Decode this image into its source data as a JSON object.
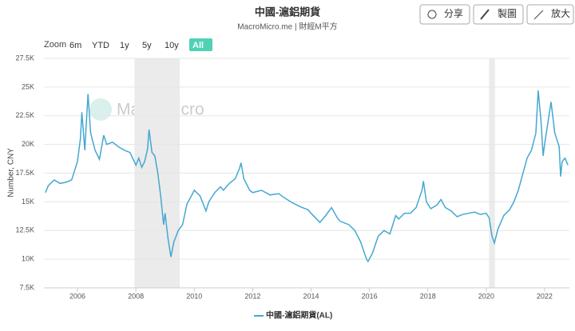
{
  "title": "中國-滬鋁期貨",
  "subtitle": "MacroMicro.me | 財經M平方",
  "buttons": [
    "分享",
    "製圖",
    "放大"
  ],
  "range_selector": {
    "label": "Zoom",
    "options": [
      "6m",
      "YTD",
      "1y",
      "5y",
      "10y",
      "All"
    ]
  },
  "watermark": "MacroMicro",
  "chart_data": {
    "type": "line",
    "ylabel": "Number, CNY",
    "xlim": [
      2004.85,
      2022.85
    ],
    "xticks": [
      2006,
      2008,
      2010,
      2012,
      2014,
      2016,
      2018,
      2020,
      2022
    ],
    "ylim": [
      7500,
      27500
    ],
    "yticks": [
      {
        "value": 7500,
        "label": "7.5K"
      },
      {
        "value": 10000,
        "label": "10K"
      },
      {
        "value": 12500,
        "label": "12.5K"
      },
      {
        "value": 15000,
        "label": "15K"
      },
      {
        "value": 17500,
        "label": "17.5K"
      },
      {
        "value": 20000,
        "label": "20K"
      },
      {
        "value": 22500,
        "label": "22.5K"
      },
      {
        "value": 25000,
        "label": "25K"
      },
      {
        "value": 27500,
        "label": "27.5K"
      }
    ],
    "grid": true,
    "plot_bands": [
      [
        2007.95,
        2009.5
      ],
      [
        2020.1,
        2020.3
      ]
    ],
    "x": [
      2004.9,
      2005.0,
      2005.2,
      2005.4,
      2005.6,
      2005.8,
      2006.0,
      2006.1,
      2006.15,
      2006.25,
      2006.36,
      2006.45,
      2006.6,
      2006.75,
      2006.9,
      2007.0,
      2007.2,
      2007.4,
      2007.6,
      2007.8,
      2008.0,
      2008.1,
      2008.2,
      2008.3,
      2008.4,
      2008.45,
      2008.55,
      2008.65,
      2008.75,
      2008.85,
      2008.95,
      2009.0,
      2009.1,
      2009.2,
      2009.3,
      2009.45,
      2009.6,
      2009.75,
      2009.9,
      2010.0,
      2010.2,
      2010.4,
      2010.5,
      2010.7,
      2010.9,
      2011.0,
      2011.2,
      2011.4,
      2011.55,
      2011.6,
      2011.7,
      2011.9,
      2012.0,
      2012.3,
      2012.6,
      2012.9,
      2013.0,
      2013.3,
      2013.6,
      2013.9,
      2014.0,
      2014.3,
      2014.5,
      2014.7,
      2014.9,
      2015.0,
      2015.3,
      2015.5,
      2015.7,
      2015.9,
      2015.95,
      2016.1,
      2016.3,
      2016.5,
      2016.7,
      2016.9,
      2017.0,
      2017.2,
      2017.4,
      2017.6,
      2017.8,
      2017.85,
      2017.95,
      2018.1,
      2018.3,
      2018.45,
      2018.6,
      2018.8,
      2019.0,
      2019.2,
      2019.4,
      2019.6,
      2019.8,
      2020.0,
      2020.1,
      2020.2,
      2020.28,
      2020.4,
      2020.6,
      2020.8,
      2020.95,
      2021.1,
      2021.25,
      2021.4,
      2021.55,
      2021.7,
      2021.78,
      2021.88,
      2021.95,
      2022.0,
      2022.15,
      2022.22,
      2022.35,
      2022.5,
      2022.55,
      2022.6,
      2022.7,
      2022.8
    ],
    "series": [
      {
        "name": "中國-滬鋁期貨(AL)",
        "color": "#45a8d0",
        "values": [
          15800,
          16400,
          16900,
          16600,
          16700,
          16900,
          18500,
          20500,
          22800,
          19500,
          24400,
          21000,
          19500,
          18700,
          20800,
          20000,
          20200,
          19800,
          19500,
          19300,
          18200,
          18800,
          18000,
          18500,
          19600,
          21300,
          19300,
          19000,
          17500,
          15500,
          13000,
          14000,
          11800,
          10200,
          11500,
          12500,
          13000,
          14800,
          15500,
          16000,
          15500,
          14200,
          15000,
          15800,
          16300,
          16000,
          16600,
          17000,
          17900,
          18400,
          17000,
          16000,
          15800,
          16000,
          15600,
          15700,
          15500,
          15000,
          14600,
          14300,
          14000,
          13200,
          13800,
          14500,
          13600,
          13300,
          13000,
          12500,
          11500,
          10000,
          9800,
          10500,
          12000,
          12500,
          12200,
          13800,
          13500,
          14000,
          14000,
          14500,
          16000,
          16800,
          15000,
          14400,
          14700,
          15200,
          14500,
          14200,
          13700,
          13900,
          14000,
          14100,
          13900,
          14000,
          13600,
          12000,
          11400,
          12600,
          13800,
          14300,
          15000,
          16000,
          17400,
          18800,
          19500,
          21000,
          24700,
          22000,
          19000,
          20000,
          22500,
          23700,
          21000,
          19800,
          17200,
          18500,
          18800,
          18200
        ]
      }
    ]
  }
}
